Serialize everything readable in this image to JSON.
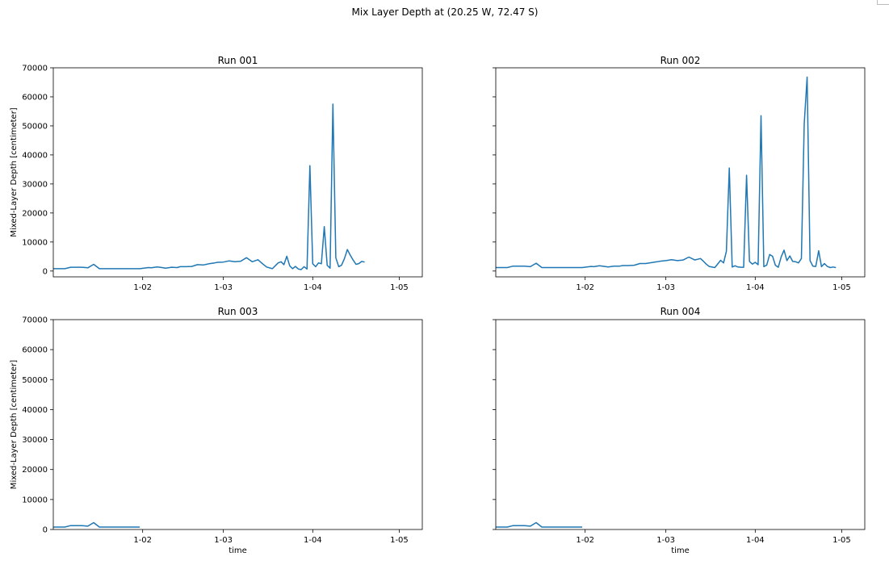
{
  "figure": {
    "suptitle": "Mix Layer Depth at (20.25 W, 72.47 S)"
  },
  "chart_data": [
    {
      "type": "line",
      "title": "Run 001",
      "xlabel": "",
      "ylabel": "Mixed-Layer Depth [centimeter]",
      "xlim": [
        0,
        128
      ],
      "ylim": [
        -2000,
        70000
      ],
      "xticks": [
        {
          "x": 31,
          "label": "1-02"
        },
        {
          "x": 59,
          "label": "1-03"
        },
        {
          "x": 90,
          "label": "1-04"
        },
        {
          "x": 120,
          "label": "1-05"
        }
      ],
      "yticks": [
        0,
        10000,
        20000,
        30000,
        40000,
        50000,
        60000,
        70000
      ],
      "show_ytick_labels": true,
      "color": "#1f77b4",
      "series": [
        {
          "x": [
            0,
            4,
            6,
            10,
            12,
            14,
            16,
            17,
            18,
            20,
            22,
            25,
            28,
            30,
            33,
            34,
            36,
            37,
            39,
            41,
            43,
            44,
            46,
            48,
            50,
            52,
            54,
            56,
            57,
            59,
            61,
            63,
            65,
            67,
            69,
            71,
            72,
            73,
            74,
            76,
            78,
            79,
            80,
            81,
            82,
            83,
            84,
            85,
            86,
            87,
            88,
            89,
            90,
            91,
            92,
            93,
            94,
            95,
            96,
            97,
            98,
            99,
            100,
            101,
            102,
            103,
            104,
            105,
            106,
            107,
            108
          ],
          "y": [
            800,
            800,
            1300,
            1300,
            1100,
            2300,
            800,
            800,
            800,
            800,
            800,
            800,
            800,
            800,
            1200,
            1100,
            1400,
            1300,
            1000,
            1300,
            1200,
            1500,
            1500,
            1600,
            2200,
            2100,
            2500,
            2800,
            3000,
            3100,
            3500,
            3200,
            3400,
            4600,
            3200,
            3900,
            3000,
            2200,
            1400,
            800,
            2800,
            3200,
            2200,
            5100,
            1800,
            800,
            1600,
            700,
            500,
            1500,
            700,
            36300,
            2500,
            1500,
            2800,
            2500,
            15300,
            2000,
            1000,
            57500,
            4600,
            1500,
            2000,
            4300,
            7400,
            5500,
            3800,
            2300,
            2600,
            3300,
            3100
          ]
        }
      ]
    },
    {
      "type": "line",
      "title": "Run 002",
      "xlabel": "",
      "ylabel": "",
      "xlim": [
        0,
        128
      ],
      "ylim": [
        -2000,
        70000
      ],
      "xticks": [
        {
          "x": 31,
          "label": "1-02"
        },
        {
          "x": 59,
          "label": "1-03"
        },
        {
          "x": 90,
          "label": "1-04"
        },
        {
          "x": 120,
          "label": "1-05"
        }
      ],
      "yticks": [
        0,
        10000,
        20000,
        30000,
        40000,
        50000,
        60000,
        70000
      ],
      "show_ytick_labels": false,
      "color": "#1f77b4",
      "series": [
        {
          "x": [
            0,
            4,
            6,
            10,
            12,
            14,
            16,
            17,
            18,
            20,
            22,
            25,
            28,
            30,
            33,
            34,
            36,
            37,
            39,
            41,
            43,
            44,
            46,
            48,
            50,
            52,
            54,
            56,
            57,
            59,
            61,
            63,
            65,
            67,
            69,
            71,
            72,
            73,
            74,
            76,
            78,
            79,
            80,
            81,
            82,
            83,
            84,
            85,
            86,
            87,
            88,
            89,
            90,
            91,
            92,
            93,
            94,
            95,
            96,
            97,
            98,
            99,
            100,
            101,
            102,
            103,
            104,
            105,
            106,
            107,
            108,
            109,
            110,
            111,
            112,
            113,
            114,
            115,
            116,
            117,
            118
          ],
          "y": [
            1200,
            1200,
            1700,
            1700,
            1500,
            2700,
            1200,
            1200,
            1200,
            1200,
            1200,
            1200,
            1200,
            1200,
            1600,
            1500,
            1800,
            1700,
            1400,
            1700,
            1700,
            1900,
            1900,
            2000,
            2600,
            2600,
            2900,
            3200,
            3400,
            3600,
            3900,
            3600,
            3800,
            4800,
            3800,
            4300,
            3400,
            2400,
            1600,
            1200,
            3700,
            2800,
            6800,
            35500,
            1400,
            1800,
            1400,
            1300,
            1300,
            33000,
            3300,
            2400,
            3000,
            2200,
            53500,
            1500,
            2100,
            5700,
            5100,
            2000,
            1300,
            4900,
            7200,
            3600,
            5200,
            3300,
            3200,
            2800,
            4300,
            50700,
            66800,
            3600,
            1700,
            1600,
            7000,
            1500,
            2600,
            1600,
            1200,
            1400,
            1200
          ]
        }
      ]
    },
    {
      "type": "line",
      "title": "Run 003",
      "xlabel": "time",
      "ylabel": "Mixed-Layer Depth [centimeter]",
      "xlim": [
        0,
        128
      ],
      "ylim": [
        0,
        70000
      ],
      "xticks": [
        {
          "x": 31,
          "label": "1-02"
        },
        {
          "x": 59,
          "label": "1-03"
        },
        {
          "x": 90,
          "label": "1-04"
        },
        {
          "x": 120,
          "label": "1-05"
        }
      ],
      "yticks": [
        0,
        10000,
        20000,
        30000,
        40000,
        50000,
        60000,
        70000
      ],
      "show_ytick_labels": true,
      "color": "#1f77b4",
      "series": [
        {
          "x": [
            0,
            4,
            6,
            10,
            12,
            14,
            16,
            17,
            18,
            20,
            22,
            25,
            28,
            30
          ],
          "y": [
            800,
            800,
            1300,
            1300,
            1100,
            2300,
            800,
            800,
            800,
            800,
            800,
            800,
            800,
            800
          ]
        }
      ]
    },
    {
      "type": "line",
      "title": "Run 004",
      "xlabel": "time",
      "ylabel": "",
      "xlim": [
        0,
        128
      ],
      "ylim": [
        0,
        70000
      ],
      "xticks": [
        {
          "x": 31,
          "label": "1-02"
        },
        {
          "x": 59,
          "label": "1-03"
        },
        {
          "x": 90,
          "label": "1-04"
        },
        {
          "x": 120,
          "label": "1-05"
        }
      ],
      "yticks": [
        0,
        10000,
        20000,
        30000,
        40000,
        50000,
        60000,
        70000
      ],
      "show_ytick_labels": false,
      "color": "#1f77b4",
      "series": [
        {
          "x": [
            0,
            4,
            6,
            10,
            12,
            14,
            16,
            17,
            18,
            20,
            22,
            25,
            28,
            30
          ],
          "y": [
            800,
            800,
            1300,
            1300,
            1100,
            2300,
            800,
            800,
            800,
            800,
            800,
            800,
            800,
            800
          ]
        }
      ]
    }
  ]
}
